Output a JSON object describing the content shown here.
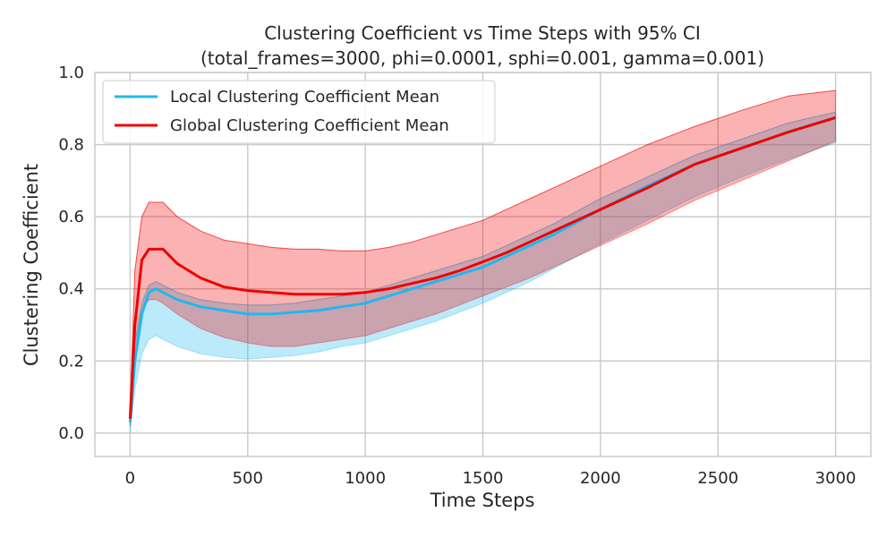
{
  "chart_data": {
    "type": "line",
    "title": "Clustering Coefficient vs Time Steps with 95% CI",
    "subtitle": "(total_frames=3000, phi=0.0001, sphi=0.001, gamma=0.001)",
    "xlabel": "Time Steps",
    "ylabel": "Clustering Coefficient",
    "xlim": [
      -150,
      3150
    ],
    "ylim": [
      -0.065,
      1.0
    ],
    "xticks": [
      "0",
      "500",
      "1000",
      "1500",
      "2000",
      "2500",
      "3000"
    ],
    "yticks": [
      "0.0",
      "0.2",
      "0.4",
      "0.6",
      "0.8",
      "1.0"
    ],
    "grid": true,
    "legend_position": "top-left",
    "series": [
      {
        "name": "Local Clustering Coefficient Mean",
        "color": "#1fb8f0",
        "x": [
          0,
          20,
          50,
          80,
          110,
          140,
          200,
          300,
          400,
          500,
          600,
          700,
          800,
          900,
          1000,
          1100,
          1200,
          1300,
          1400,
          1500,
          1600,
          1700,
          1800,
          1900,
          2000,
          2200,
          2400,
          2600,
          2800,
          3000
        ],
        "mean": [
          0.03,
          0.2,
          0.33,
          0.39,
          0.4,
          0.39,
          0.37,
          0.35,
          0.34,
          0.33,
          0.33,
          0.335,
          0.34,
          0.35,
          0.36,
          0.38,
          0.4,
          0.42,
          0.44,
          0.46,
          0.49,
          0.52,
          0.55,
          0.585,
          0.62,
          0.685,
          0.745,
          0.79,
          0.835,
          0.875
        ],
        "lower": [
          0.0,
          0.12,
          0.22,
          0.26,
          0.27,
          0.26,
          0.24,
          0.22,
          0.21,
          0.205,
          0.21,
          0.215,
          0.225,
          0.24,
          0.25,
          0.27,
          0.29,
          0.31,
          0.335,
          0.36,
          0.39,
          0.42,
          0.455,
          0.49,
          0.525,
          0.59,
          0.655,
          0.71,
          0.76,
          0.805
        ],
        "upper": [
          0.06,
          0.25,
          0.36,
          0.41,
          0.42,
          0.41,
          0.39,
          0.37,
          0.36,
          0.355,
          0.355,
          0.36,
          0.37,
          0.38,
          0.39,
          0.41,
          0.43,
          0.45,
          0.47,
          0.49,
          0.52,
          0.55,
          0.58,
          0.615,
          0.65,
          0.71,
          0.77,
          0.815,
          0.86,
          0.89
        ]
      },
      {
        "name": "Global Clustering Coefficient Mean",
        "color": "#ee0000",
        "x": [
          0,
          20,
          50,
          80,
          110,
          140,
          200,
          300,
          400,
          500,
          600,
          700,
          800,
          900,
          1000,
          1100,
          1200,
          1300,
          1400,
          1500,
          1600,
          1700,
          1800,
          1900,
          2000,
          2200,
          2400,
          2600,
          2800,
          3000
        ],
        "mean": [
          0.04,
          0.3,
          0.48,
          0.51,
          0.51,
          0.51,
          0.47,
          0.43,
          0.405,
          0.395,
          0.39,
          0.385,
          0.385,
          0.385,
          0.39,
          0.4,
          0.415,
          0.43,
          0.45,
          0.475,
          0.5,
          0.53,
          0.56,
          0.59,
          0.62,
          0.68,
          0.745,
          0.79,
          0.835,
          0.875
        ],
        "lower": [
          0.02,
          0.2,
          0.34,
          0.37,
          0.37,
          0.36,
          0.33,
          0.29,
          0.265,
          0.25,
          0.24,
          0.24,
          0.25,
          0.26,
          0.27,
          0.29,
          0.31,
          0.33,
          0.355,
          0.38,
          0.405,
          0.43,
          0.46,
          0.49,
          0.52,
          0.58,
          0.645,
          0.7,
          0.755,
          0.81
        ],
        "upper": [
          0.07,
          0.45,
          0.6,
          0.64,
          0.64,
          0.64,
          0.6,
          0.56,
          0.535,
          0.525,
          0.515,
          0.51,
          0.51,
          0.505,
          0.505,
          0.515,
          0.53,
          0.55,
          0.57,
          0.59,
          0.62,
          0.65,
          0.68,
          0.71,
          0.74,
          0.8,
          0.85,
          0.895,
          0.935,
          0.95
        ]
      }
    ]
  }
}
